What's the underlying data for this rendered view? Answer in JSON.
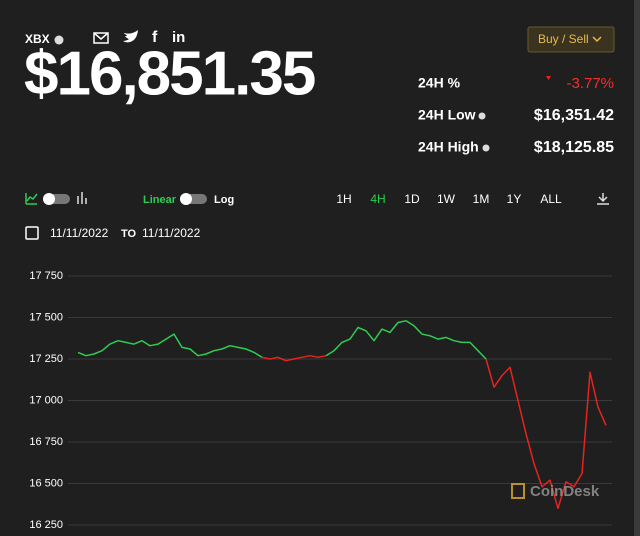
{
  "header": {
    "symbol": "XBX",
    "price": "$16,851.35",
    "button": "Buy / Sell"
  },
  "stats": {
    "change_label": "24H %",
    "change_value": "-3.77%",
    "low_label": "24H Low",
    "low_value": "$16,351.42",
    "high_label": "24H High",
    "high_value": "$18,125.85"
  },
  "controls": {
    "linear": "Linear",
    "log": "Log",
    "ranges": [
      "1H",
      "4H",
      "1D",
      "1W",
      "1M",
      "1Y",
      "ALL"
    ],
    "from": "11/11/2022",
    "to_label": "TO",
    "to": "11/11/2022"
  },
  "watermark": "CoinDesk",
  "chart_data": {
    "type": "line",
    "ylim": [
      16250,
      17750
    ],
    "yticks": [
      {
        "value": 16250,
        "label": "16 250"
      },
      {
        "value": 16500,
        "label": "16 500"
      },
      {
        "value": 16750,
        "label": "16 750"
      },
      {
        "value": 17000,
        "label": "17 000"
      },
      {
        "value": 17250,
        "label": "17 250"
      },
      {
        "value": 17500,
        "label": "17 500"
      },
      {
        "value": 17750,
        "label": "17 750"
      }
    ],
    "grid": true,
    "series": [
      {
        "color": "#2ecc52",
        "values": [
          17290,
          17270,
          17280,
          17300,
          17340,
          17360,
          17350,
          17340,
          17360,
          17330,
          17340,
          17370,
          17400,
          17320,
          17310,
          17270,
          17280,
          17300,
          17310,
          17330,
          17320,
          17310,
          17290,
          17260,
          null,
          null,
          null,
          null,
          null,
          null,
          null,
          17270,
          17300,
          17350,
          17370,
          17440,
          17420,
          17360,
          17430,
          17410,
          17470,
          17480,
          17450,
          17400,
          17390,
          17370,
          17380,
          17360,
          17350,
          17350,
          17300,
          17250,
          null,
          null,
          null,
          null,
          null,
          null,
          null,
          null,
          null,
          null,
          null,
          null,
          null,
          null,
          null
        ]
      },
      {
        "color": "#e8231f",
        "values": [
          null,
          null,
          null,
          null,
          null,
          null,
          null,
          null,
          null,
          null,
          null,
          null,
          null,
          null,
          null,
          null,
          null,
          null,
          null,
          null,
          null,
          null,
          null,
          17260,
          17250,
          17260,
          17240,
          17250,
          17260,
          17270,
          17260,
          17270,
          null,
          null,
          null,
          null,
          null,
          null,
          null,
          null,
          null,
          null,
          null,
          null,
          null,
          null,
          null,
          null,
          null,
          null,
          null,
          17250,
          17080,
          17150,
          17200,
          17000,
          16800,
          16620,
          16480,
          16520,
          16350,
          16510,
          16480,
          16560,
          17170,
          16960,
          16850
        ]
      }
    ]
  }
}
